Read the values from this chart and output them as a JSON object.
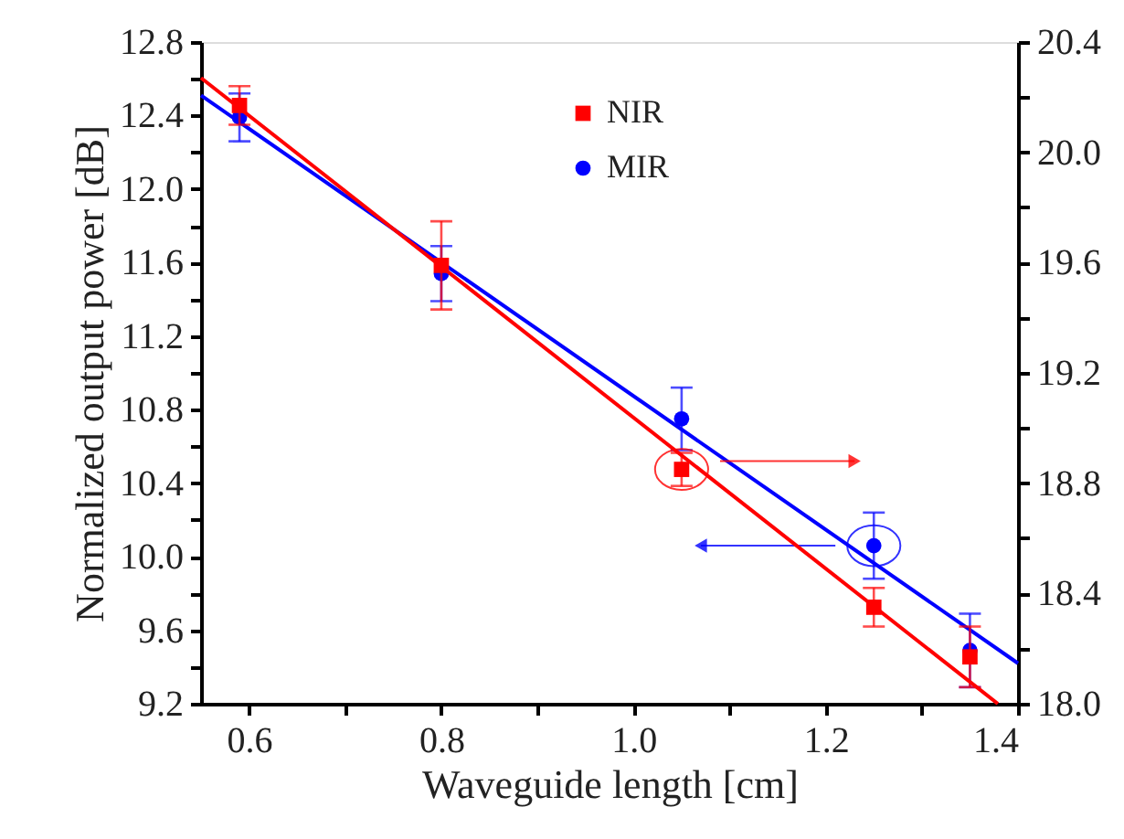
{
  "chart_data": {
    "type": "scatter",
    "xlabel": "Waveguide length [cm]",
    "ylabel": "Normalized output power [dB]",
    "xlim": [
      0.55,
      1.4
    ],
    "xticks": [
      0.6,
      {
        "value": 0.7,
        "label": null
      },
      0.8,
      {
        "value": 0.9,
        "label": null
      },
      {
        "value": 1.0,
        "label": "1.0"
      },
      {
        "value": 1.1,
        "label": null
      },
      1.2,
      {
        "value": 1.3,
        "label": null
      },
      1.4
    ],
    "ylim": [
      9.2,
      12.8
    ],
    "yticks": [
      9.2,
      {
        "value": 9.4,
        "label": null
      },
      9.6,
      {
        "value": 9.8,
        "label": null
      },
      {
        "value": 10.0,
        "label": "10.0"
      },
      {
        "value": 10.2,
        "label": null
      },
      10.4,
      {
        "value": 10.6,
        "label": null
      },
      10.8,
      {
        "value": 11.0,
        "label": null
      },
      11.2,
      {
        "value": 11.4,
        "label": null
      },
      11.6,
      {
        "value": 11.8,
        "label": null
      },
      {
        "value": 12.0,
        "label": "12.0"
      },
      {
        "value": 12.2,
        "label": null
      },
      12.4,
      {
        "value": 12.6,
        "label": null
      },
      12.8
    ],
    "y2lim": [
      18.0,
      20.4
    ],
    "y2ticks": [
      {
        "value": 18.0,
        "label": "18.0"
      },
      {
        "value": 18.2,
        "label": null
      },
      18.4,
      {
        "value": 18.6,
        "label": null
      },
      18.8,
      {
        "value": 19.0,
        "label": null
      },
      19.2,
      {
        "value": 19.4,
        "label": null
      },
      19.6,
      {
        "value": 19.8,
        "label": null
      },
      {
        "value": 20.0,
        "label": "20.0"
      },
      {
        "value": 20.2,
        "label": null
      },
      20.4
    ],
    "grid": false,
    "legend": "top",
    "series": [
      {
        "name": "NIR",
        "marker": "square",
        "axis": "y2",
        "color": "#ff0000",
        "x": [
          0.59,
          0.8,
          1.05,
          1.25,
          1.35
        ],
        "values": [
          20.17,
          19.59,
          18.85,
          18.35,
          18.17
        ],
        "errors": [
          0.07,
          0.16,
          0.06,
          0.07,
          0.11
        ]
      },
      {
        "name": "MIR",
        "marker": "circle",
        "color": "#0000ff",
        "x": [
          0.59,
          0.8,
          1.05,
          1.25,
          1.35
        ],
        "values": [
          12.39,
          11.54,
          10.75,
          10.06,
          9.49
        ],
        "errors": [
          0.13,
          0.15,
          0.17,
          0.18,
          0.2
        ]
      },
      {
        "type": "line",
        "axis": "y2",
        "color": "#ff0000",
        "x": [
          0.55,
          1.379
        ],
        "values": [
          20.27,
          18.0
        ]
      },
      {
        "type": "line",
        "color": "#0000ff",
        "x": [
          0.55,
          1.4
        ],
        "values": [
          12.51,
          9.42
        ]
      }
    ]
  }
}
